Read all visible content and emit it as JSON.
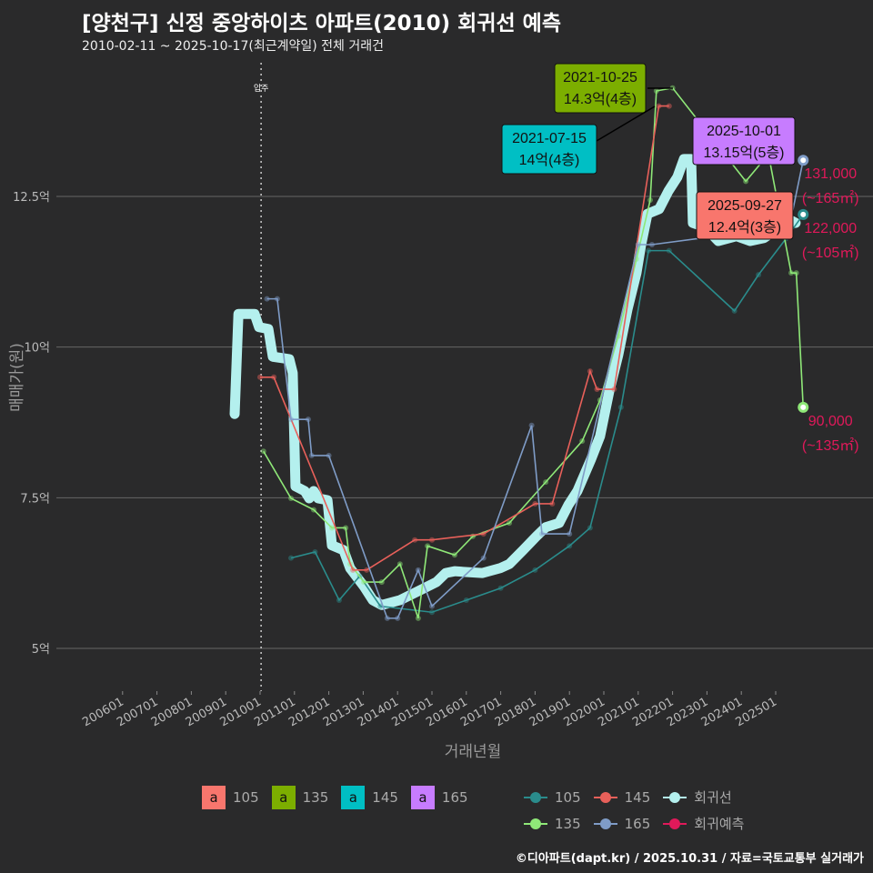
{
  "title": "[양천구] 신정 중앙하이츠 아파트(2010) 회귀선 예측",
  "subtitle": "2010-02-11 ~ 2025-10-17(최근계약일) 전체 거래건",
  "footer": "©디아파트(dapt.kr) / 2025.10.31 / 자료=국토교통부 실거래가",
  "chart_data": {
    "type": "line",
    "xlabel": "거래년월",
    "ylabel": "매매가(원)",
    "xlim": [
      2005.6,
      2026.6
    ],
    "ylim": [
      4.3,
      14.8
    ],
    "x_ticks": [
      2006,
      2007,
      2008,
      2009,
      2010,
      2011,
      2012,
      2013,
      2014,
      2015,
      2016,
      2017,
      2018,
      2019,
      2020,
      2021,
      2022,
      2023,
      2024,
      2025
    ],
    "x_tick_labels": [
      "200601",
      "200701",
      "200801",
      "200901",
      "201001",
      "201101",
      "201201",
      "201301",
      "201401",
      "201501",
      "201601",
      "201701",
      "201801",
      "201901",
      "202001",
      "202101",
      "202201",
      "202301",
      "202401",
      "202501"
    ],
    "y_ticks": [
      5,
      7.5,
      10,
      12.5
    ],
    "y_tick_labels": [
      "5억",
      "7.5억",
      "10억",
      "12.5억"
    ],
    "vline": {
      "x": 2010.03,
      "label": "입주"
    },
    "regression": {
      "name": "회귀선",
      "color": "#b4f0ee",
      "points": [
        [
          2009.26,
          8.89
        ],
        [
          2009.37,
          10.55
        ],
        [
          2009.84,
          10.55
        ],
        [
          2009.97,
          10.33
        ],
        [
          2010.24,
          10.3
        ],
        [
          2010.37,
          9.84
        ],
        [
          2010.85,
          9.8
        ],
        [
          2010.95,
          9.57
        ],
        [
          2011.03,
          7.69
        ],
        [
          2011.3,
          7.61
        ],
        [
          2011.43,
          7.49
        ],
        [
          2011.56,
          7.61
        ],
        [
          2011.69,
          7.49
        ],
        [
          2011.96,
          7.46
        ],
        [
          2012.09,
          6.71
        ],
        [
          2012.43,
          6.63
        ],
        [
          2012.62,
          6.33
        ],
        [
          2013.02,
          6.03
        ],
        [
          2013.28,
          5.8
        ],
        [
          2013.54,
          5.72
        ],
        [
          2014.07,
          5.8
        ],
        [
          2014.6,
          5.95
        ],
        [
          2015.13,
          6.1
        ],
        [
          2015.4,
          6.25
        ],
        [
          2015.66,
          6.28
        ],
        [
          2016.46,
          6.25
        ],
        [
          2016.98,
          6.33
        ],
        [
          2017.25,
          6.4
        ],
        [
          2017.65,
          6.63
        ],
        [
          2018.04,
          6.86
        ],
        [
          2018.31,
          7.01
        ],
        [
          2018.7,
          7.08
        ],
        [
          2018.97,
          7.38
        ],
        [
          2019.23,
          7.61
        ],
        [
          2019.63,
          8.14
        ],
        [
          2019.89,
          8.52
        ],
        [
          2020.16,
          9.27
        ],
        [
          2020.42,
          9.87
        ],
        [
          2020.69,
          10.63
        ],
        [
          2020.95,
          11.23
        ],
        [
          2021.08,
          11.68
        ],
        [
          2021.27,
          12.21
        ],
        [
          2021.61,
          12.29
        ],
        [
          2021.88,
          12.59
        ],
        [
          2022.14,
          12.82
        ],
        [
          2022.33,
          13.12
        ],
        [
          2022.54,
          13.12
        ],
        [
          2022.59,
          12.06
        ],
        [
          2022.94,
          11.99
        ],
        [
          2023.33,
          11.76
        ],
        [
          2023.86,
          11.84
        ],
        [
          2024.26,
          11.76
        ],
        [
          2024.66,
          11.81
        ],
        [
          2024.92,
          11.91
        ],
        [
          2025.13,
          12.06
        ],
        [
          2025.32,
          12.14
        ],
        [
          2025.58,
          12.06
        ]
      ]
    },
    "series": [
      {
        "name": "105",
        "color": "#2a8c8c",
        "points": [
          [
            2010.9,
            6.5
          ],
          [
            2011.6,
            6.6
          ],
          [
            2012.3,
            5.8
          ],
          [
            2012.9,
            6.2
          ],
          [
            2013.5,
            5.7
          ],
          [
            2015.0,
            5.6
          ],
          [
            2016.0,
            5.8
          ],
          [
            2017.0,
            6.0
          ],
          [
            2018.0,
            6.3
          ],
          [
            2019.0,
            6.7
          ],
          [
            2019.6,
            7.0
          ],
          [
            2020.5,
            9.0
          ],
          [
            2021.3,
            11.6
          ],
          [
            2021.9,
            11.6
          ],
          [
            2023.8,
            10.6
          ],
          [
            2024.5,
            11.2
          ],
          [
            2025.3,
            11.8
          ],
          [
            2025.8,
            12.2
          ]
        ]
      },
      {
        "name": "135",
        "color": "#8fe878",
        "points": [
          [
            2010.1,
            8.27
          ],
          [
            2010.9,
            7.49
          ],
          [
            2011.56,
            7.3
          ],
          [
            2012.09,
            7.0
          ],
          [
            2012.49,
            7.0
          ],
          [
            2012.62,
            6.4
          ],
          [
            2013.02,
            6.1
          ],
          [
            2013.54,
            6.1
          ],
          [
            2014.07,
            6.4
          ],
          [
            2014.6,
            5.5
          ],
          [
            2014.87,
            6.7
          ],
          [
            2015.66,
            6.55
          ],
          [
            2016.19,
            6.86
          ],
          [
            2017.25,
            7.08
          ],
          [
            2018.31,
            7.76
          ],
          [
            2019.37,
            8.44
          ],
          [
            2019.89,
            9.12
          ],
          [
            2020.42,
            10.18
          ],
          [
            2020.95,
            11.46
          ],
          [
            2021.35,
            12.44
          ],
          [
            2021.53,
            14.25
          ],
          [
            2022.0,
            14.3
          ],
          [
            2024.13,
            12.75
          ],
          [
            2024.79,
            13.2
          ],
          [
            2025.45,
            11.23
          ],
          [
            2025.6,
            11.23
          ],
          [
            2025.8,
            9.0
          ]
        ]
      },
      {
        "name": "145",
        "color": "#e8605a",
        "points": [
          [
            2010.0,
            9.5
          ],
          [
            2010.4,
            9.5
          ],
          [
            2012.7,
            6.3
          ],
          [
            2013.1,
            6.3
          ],
          [
            2014.5,
            6.8
          ],
          [
            2015.0,
            6.8
          ],
          [
            2016.5,
            6.9
          ],
          [
            2018.0,
            7.4
          ],
          [
            2018.5,
            7.4
          ],
          [
            2019.6,
            9.6
          ],
          [
            2019.8,
            9.3
          ],
          [
            2020.3,
            9.3
          ],
          [
            2021.6,
            14.0
          ],
          [
            2021.9,
            14.0
          ]
        ]
      },
      {
        "name": "165",
        "color": "#7f9cc7",
        "points": [
          [
            2010.2,
            10.8
          ],
          [
            2010.5,
            10.8
          ],
          [
            2010.9,
            8.8
          ],
          [
            2011.4,
            8.8
          ],
          [
            2011.5,
            8.2
          ],
          [
            2012.0,
            8.2
          ],
          [
            2013.7,
            5.5
          ],
          [
            2014.0,
            5.5
          ],
          [
            2014.6,
            6.3
          ],
          [
            2015.0,
            5.7
          ],
          [
            2016.5,
            6.5
          ],
          [
            2017.9,
            8.7
          ],
          [
            2018.2,
            6.9
          ],
          [
            2019.0,
            6.9
          ],
          [
            2021.0,
            11.7
          ],
          [
            2021.4,
            11.7
          ],
          [
            2025.4,
            12.0
          ],
          [
            2025.8,
            13.1
          ]
        ]
      }
    ],
    "endpoints": [
      {
        "series": "165",
        "x": 2025.8,
        "y": 13.1,
        "color": "#7f9cc7"
      },
      {
        "series": "105",
        "x": 2025.8,
        "y": 12.2,
        "color": "#2a8c8c"
      },
      {
        "series": "135",
        "x": 2025.8,
        "y": 9.0,
        "color": "#8fe878"
      }
    ],
    "predictions": [
      {
        "value": "131,000",
        "area": "(~165㎡)",
        "x": 2025.8,
        "y": 13.1
      },
      {
        "value": "122,000",
        "area": "(~105㎡)",
        "x": 2025.8,
        "y": 12.2
      },
      {
        "value": "90,000",
        "area": "(~135㎡)",
        "x": 2025.8,
        "y": 9.0
      }
    ],
    "annotations": [
      {
        "date": "2021-10-25",
        "price": "14.3억(4층)",
        "color": "#7cae00",
        "x": 2021.9,
        "y": 14.3
      },
      {
        "date": "2021-07-15",
        "price": "14억(4층)",
        "color": "#00bfc4",
        "x": 2021.6,
        "y": 14.0
      },
      {
        "date": "2025-10-01",
        "price": "13.15억(5층)",
        "color": "#c77cff",
        "x": 2025.0,
        "y": 13.15
      },
      {
        "date": "2025-09-27",
        "price": "12.4억(3층)",
        "color": "#f8766d",
        "x": 2025.0,
        "y": 12.4
      }
    ]
  },
  "legend_area": {
    "items": [
      {
        "label": "105",
        "color": "#f8766d"
      },
      {
        "label": "135",
        "color": "#7cae00"
      },
      {
        "label": "145",
        "color": "#00bfc4"
      },
      {
        "label": "165",
        "color": "#c77cff"
      }
    ],
    "glyph": "a"
  },
  "legend_series": [
    {
      "label": "105",
      "color": "#2a8c8c"
    },
    {
      "label": "145",
      "color": "#e8605a"
    },
    {
      "label": "회귀선",
      "color": "#b4f0ee"
    },
    {
      "label": "135",
      "color": "#8fe878"
    },
    {
      "label": "165",
      "color": "#7f9cc7"
    },
    {
      "label": "회귀예측",
      "color": "#e0195a"
    }
  ]
}
